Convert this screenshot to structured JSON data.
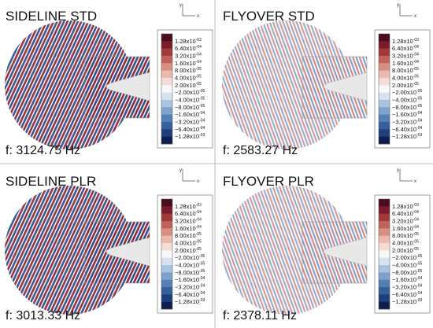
{
  "panels": [
    {
      "title": "SIDELINE STD",
      "frequency": "f: 3124.75 Hz"
    },
    {
      "title": "FLYOVER STD",
      "frequency": "f: 2583.27 Hz"
    },
    {
      "title": "SIDELINE PLR",
      "frequency": "f: 3013.33 Hz"
    },
    {
      "title": "FLYOVER PLR",
      "frequency": "f: 2378.11 Hz"
    }
  ],
  "axis_labels": {
    "y": "y",
    "x": "x"
  },
  "colorbar_labels": [
    {
      "mantissa": "1.28x10",
      "exponent": "-03"
    },
    {
      "mantissa": "6.40x10",
      "exponent": "-04"
    },
    {
      "mantissa": "3.20x10",
      "exponent": "-04"
    },
    {
      "mantissa": "1.60x10",
      "exponent": "-04"
    },
    {
      "mantissa": "8.00x10",
      "exponent": "-05"
    },
    {
      "mantissa": "4.00x10",
      "exponent": "-05"
    },
    {
      "mantissa": "2.00x10",
      "exponent": "-05"
    },
    {
      "mantissa": "−2.00x10",
      "exponent": "-05"
    },
    {
      "mantissa": "−4.00x10",
      "exponent": "-05"
    },
    {
      "mantissa": "−8.00x10",
      "exponent": "-05"
    },
    {
      "mantissa": "−1.60x10",
      "exponent": "-04"
    },
    {
      "mantissa": "−3.20x10",
      "exponent": "-04"
    },
    {
      "mantissa": "−6.40x10",
      "exponent": "-04"
    },
    {
      "mantissa": "−1.28x10",
      "exponent": "-03"
    }
  ]
}
